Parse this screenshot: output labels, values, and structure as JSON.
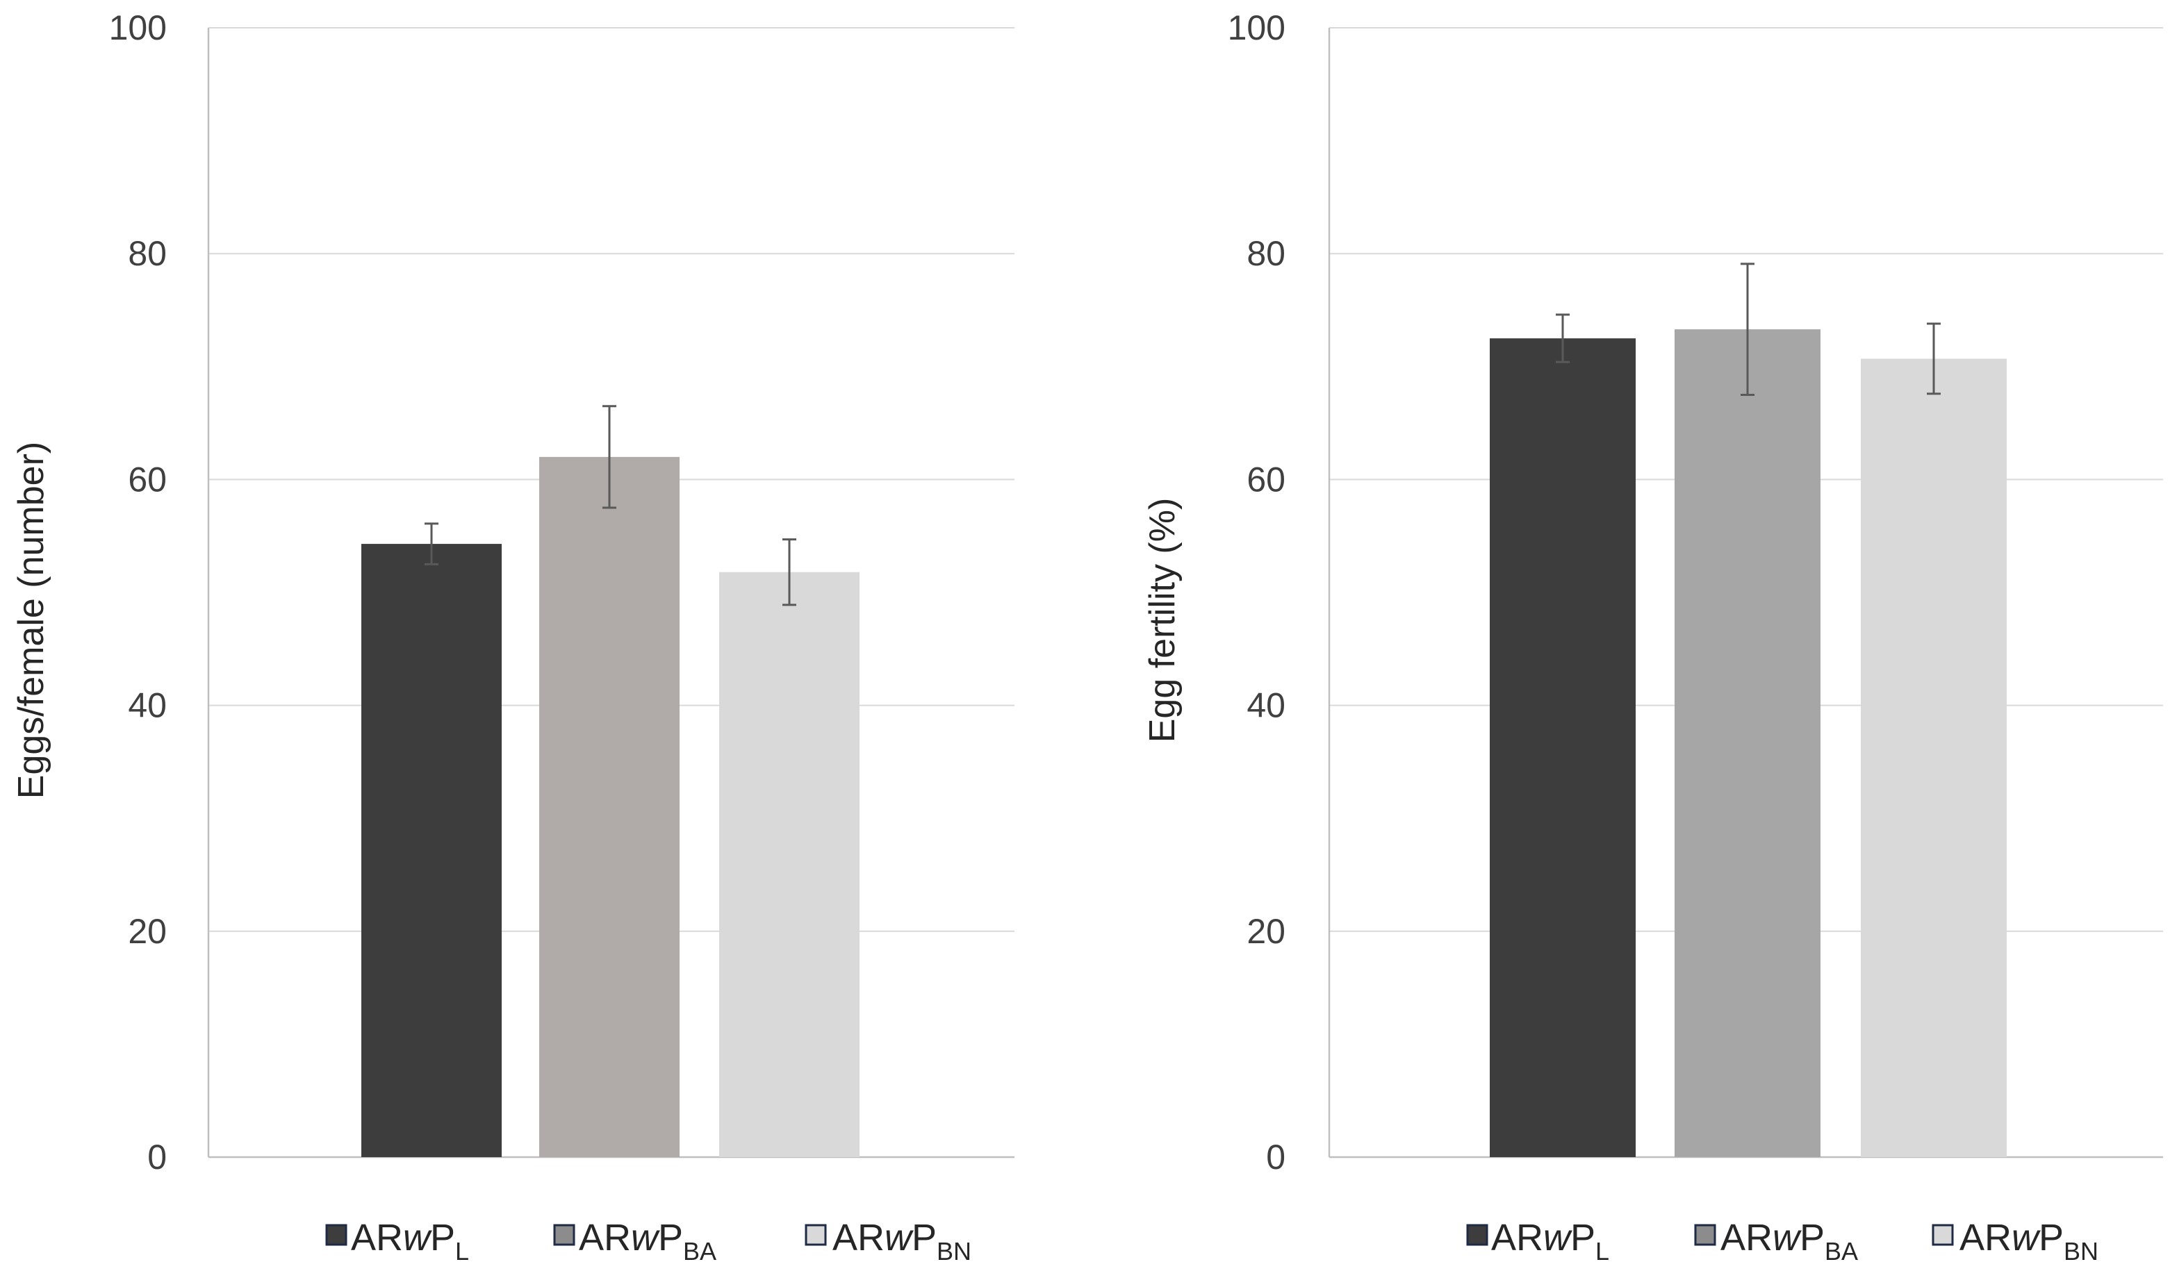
{
  "chart_data": [
    {
      "type": "bar",
      "title": "",
      "xlabel": "",
      "ylabel": "Eggs/female (number)",
      "ylim": [
        0,
        100
      ],
      "yticks": [
        "0",
        "20",
        "40",
        "60",
        "80",
        "100"
      ],
      "grid": true,
      "legend": "bottom",
      "categories": [
        "ARwPL",
        "ARwPBA",
        "ARwPBN"
      ],
      "values": [
        54.3,
        62.0,
        51.8
      ],
      "errors": [
        1.8,
        4.5,
        2.9
      ],
      "colors": [
        "#3d3d3d",
        "#b0aba8",
        "#d9d9d9"
      ],
      "legend_entries": [
        {
          "pre": "AR",
          "it": "w",
          "post": "P",
          "sub": "L",
          "swatch": "#3d3d3d"
        },
        {
          "pre": "AR",
          "it": "w",
          "post": "P",
          "sub": "BA",
          "swatch": "#8c8c8c"
        },
        {
          "pre": "AR",
          "it": "w",
          "post": "P",
          "sub": "BN",
          "swatch": "#d9d9d9"
        }
      ]
    },
    {
      "type": "bar",
      "title": "",
      "xlabel": "",
      "ylabel": "Egg fertility (%)",
      "ylim": [
        0,
        100
      ],
      "yticks": [
        "0",
        "20",
        "40",
        "60",
        "80",
        "100"
      ],
      "grid": true,
      "legend": "bottom",
      "categories": [
        "ARwPL",
        "ARwPBA",
        "ARwPBN"
      ],
      "values": [
        72.5,
        73.3,
        70.7
      ],
      "errors": [
        2.1,
        5.8,
        3.1
      ],
      "colors": [
        "#3d3d3d",
        "#a6a6a6",
        "#d9d9d9"
      ],
      "legend_entries": [
        {
          "pre": "AR",
          "it": "w",
          "post": "P",
          "sub": "L",
          "swatch": "#3d3d3d"
        },
        {
          "pre": "AR",
          "it": "w",
          "post": "P",
          "sub": "BA",
          "swatch": "#8c8c8c"
        },
        {
          "pre": "AR",
          "it": "w",
          "post": "P",
          "sub": "BN",
          "swatch": "#d9d9d9"
        }
      ]
    }
  ]
}
